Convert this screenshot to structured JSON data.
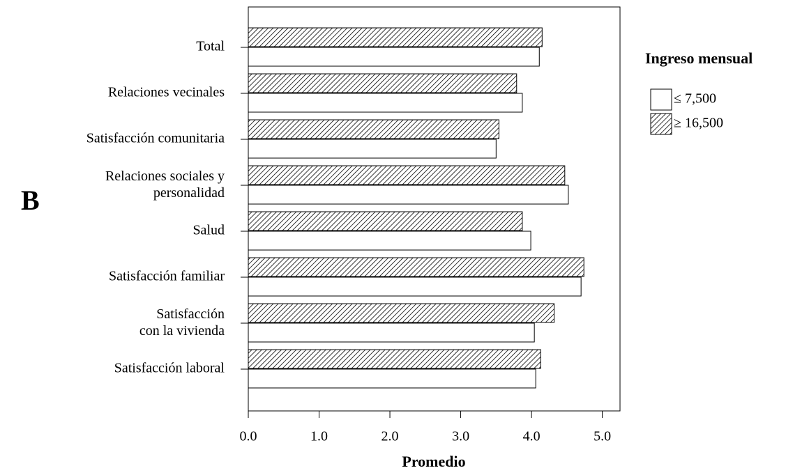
{
  "chart_data": {
    "type": "barh",
    "panel_label": "B",
    "xlabel": "Promedio",
    "legend_title": "Ingreso mensual",
    "legend_position": "right",
    "categories": [
      "Total",
      "Relaciones vecinales",
      "Satisfacción comunitaria",
      "Relaciones sociales y\npersonalidad",
      "Salud",
      "Satisfacción familiar",
      "Satisfacción\ncon la vivienda",
      "Satisfacción laboral"
    ],
    "series": [
      {
        "name": "≤ 7,500",
        "color": "#ffffff",
        "hatch": false,
        "values": [
          4.11,
          3.87,
          3.5,
          4.52,
          3.99,
          4.7,
          4.04,
          4.06
        ]
      },
      {
        "name": "≥ 16,500",
        "color": "#ffffff",
        "hatch": true,
        "values": [
          4.15,
          3.79,
          3.54,
          4.47,
          3.87,
          4.74,
          4.32,
          4.13
        ]
      }
    ],
    "xlim": [
      0,
      5.25
    ],
    "xticks": [
      {
        "value": 0,
        "label": "0.0"
      },
      {
        "value": 1,
        "label": "1.0"
      },
      {
        "value": 2,
        "label": "2.0"
      },
      {
        "value": 3,
        "label": "3.0"
      },
      {
        "value": 4,
        "label": "4.0"
      },
      {
        "value": 5,
        "label": "5.0"
      }
    ]
  }
}
